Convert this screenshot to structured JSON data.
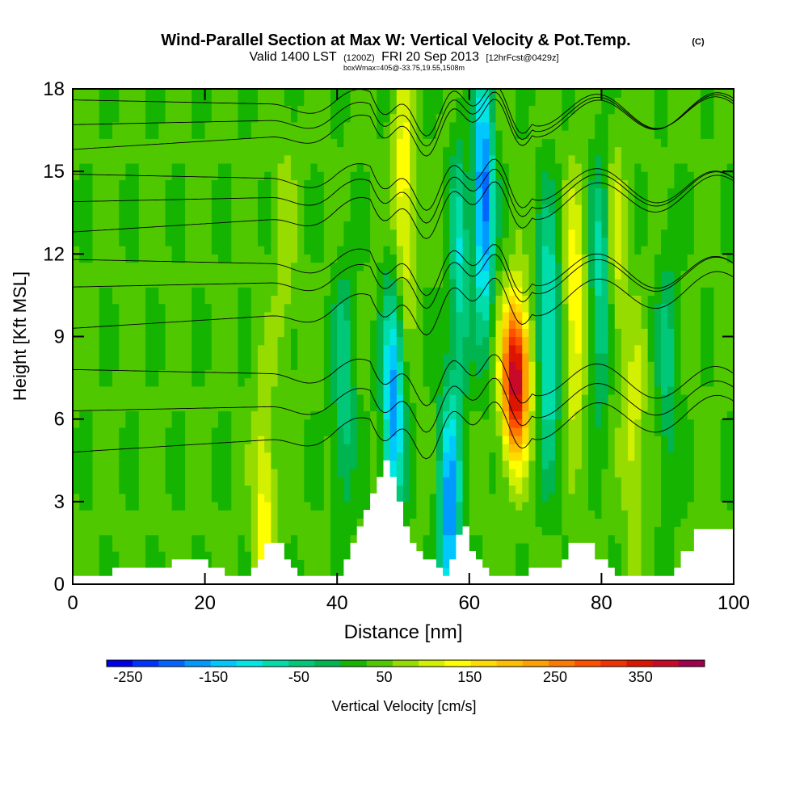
{
  "chart_data": {
    "type": "heatmap",
    "title": "Wind-Parallel Section at Max W: Vertical Velocity & Pot.Temp.",
    "title_mark": "(C)",
    "subtitle": {
      "valid": "Valid 1400 LST",
      "utc": "(1200Z)",
      "date": "FRI 20 Sep 2013",
      "fcst": "[12hrFcst@0429z]"
    },
    "box_label": "boxWmax=405@-33.75,19.55,1508m",
    "xlabel": "Distance [nm]",
    "ylabel": "Height [Kft MSL]",
    "xlim": [
      0,
      100
    ],
    "ylim": [
      0,
      18
    ],
    "x_ticks": [
      "0",
      "20",
      "40",
      "60",
      "80",
      "100"
    ],
    "y_ticks": [
      "0",
      "3",
      "6",
      "9",
      "12",
      "15",
      "18"
    ],
    "colorbar": {
      "label": "Vertical Velocity [cm/s]",
      "min": -275,
      "max": 425,
      "tick_labels": [
        "-250",
        "-150",
        "-50",
        "50",
        "150",
        "250",
        "350"
      ],
      "tick_values": [
        -250,
        -150,
        -50,
        50,
        150,
        250,
        350
      ],
      "colors": [
        "#0000e6",
        "#0033ff",
        "#0066ff",
        "#0099ff",
        "#00c8ff",
        "#00e6e6",
        "#00dcaa",
        "#00c878",
        "#00b450",
        "#14b400",
        "#50c800",
        "#96dc00",
        "#d2f000",
        "#ffff00",
        "#ffdc00",
        "#ffbe00",
        "#ffa000",
        "#ff7800",
        "#ff5000",
        "#f03200",
        "#dc1400",
        "#c80a28",
        "#a00050"
      ]
    },
    "terrain_height_kft": [
      [
        0,
        0.3
      ],
      [
        5,
        0.3
      ],
      [
        6,
        0.6
      ],
      [
        11,
        0.6
      ],
      [
        12,
        0.6
      ],
      [
        15,
        0.9
      ],
      [
        20,
        0.9
      ],
      [
        20.5,
        0.6
      ],
      [
        23,
        0.3
      ],
      [
        25,
        0.3
      ],
      [
        27,
        0.6
      ],
      [
        28,
        0.9
      ],
      [
        29,
        1.5
      ],
      [
        31,
        1.5
      ],
      [
        32,
        0.9
      ],
      [
        33,
        0.6
      ],
      [
        34,
        0.3
      ],
      [
        40,
        0.3
      ],
      [
        41,
        0.9
      ],
      [
        42,
        1.5
      ],
      [
        43,
        2.1
      ],
      [
        44,
        2.7
      ],
      [
        45,
        3.3
      ],
      [
        46,
        3.9
      ],
      [
        47,
        4.5
      ],
      [
        48,
        3.9
      ],
      [
        49,
        3.0
      ],
      [
        50,
        2.1
      ],
      [
        51,
        1.5
      ],
      [
        52,
        1.2
      ],
      [
        53,
        0.9
      ],
      [
        55,
        0.6
      ],
      [
        56,
        0.3
      ],
      [
        57,
        0.9
      ],
      [
        58,
        1.8
      ],
      [
        59,
        2.1
      ],
      [
        60,
        1.2
      ],
      [
        61,
        0.9
      ],
      [
        62,
        0.6
      ],
      [
        63,
        0.3
      ],
      [
        68,
        0.3
      ],
      [
        69,
        0.6
      ],
      [
        72,
        0.6
      ],
      [
        74,
        0.9
      ],
      [
        75,
        1.5
      ],
      [
        78,
        1.5
      ],
      [
        79,
        0.9
      ],
      [
        81,
        0.6
      ],
      [
        82,
        0.3
      ],
      [
        90,
        0.3
      ],
      [
        91,
        0.6
      ],
      [
        92,
        1.2
      ],
      [
        94,
        2.0
      ],
      [
        100,
        2.0
      ]
    ],
    "theta_contours_start_kft": [
      4.8,
      6.3,
      7.8,
      9.3,
      10.8,
      11.8,
      12.8,
      13.9,
      14.9,
      15.8,
      16.7,
      17.6
    ],
    "velocity_features": [
      {
        "x": 29,
        "z": 2.5,
        "w": 140
      },
      {
        "x": 32,
        "z": 12,
        "w": 80
      },
      {
        "x": 41,
        "z": 7,
        "w": -60
      },
      {
        "x": 48.5,
        "z": 6.5,
        "w": -170
      },
      {
        "x": 50,
        "z": 14,
        "w": 150
      },
      {
        "x": 57,
        "z": 2.5,
        "w": -180
      },
      {
        "x": 59,
        "z": 12,
        "w": -150
      },
      {
        "x": 60,
        "z": 13,
        "w": 160
      },
      {
        "x": 62,
        "z": 14,
        "w": -230
      },
      {
        "x": 67,
        "z": 7.5,
        "w": 405
      },
      {
        "x": 72,
        "z": 9,
        "w": -120
      },
      {
        "x": 76,
        "z": 10,
        "w": 150
      },
      {
        "x": 80,
        "z": 11,
        "w": -90
      },
      {
        "x": 82,
        "z": 12,
        "w": 110
      },
      {
        "x": 85,
        "z": 5,
        "w": 110
      },
      {
        "x": 90,
        "z": 8,
        "w": -40
      }
    ]
  }
}
